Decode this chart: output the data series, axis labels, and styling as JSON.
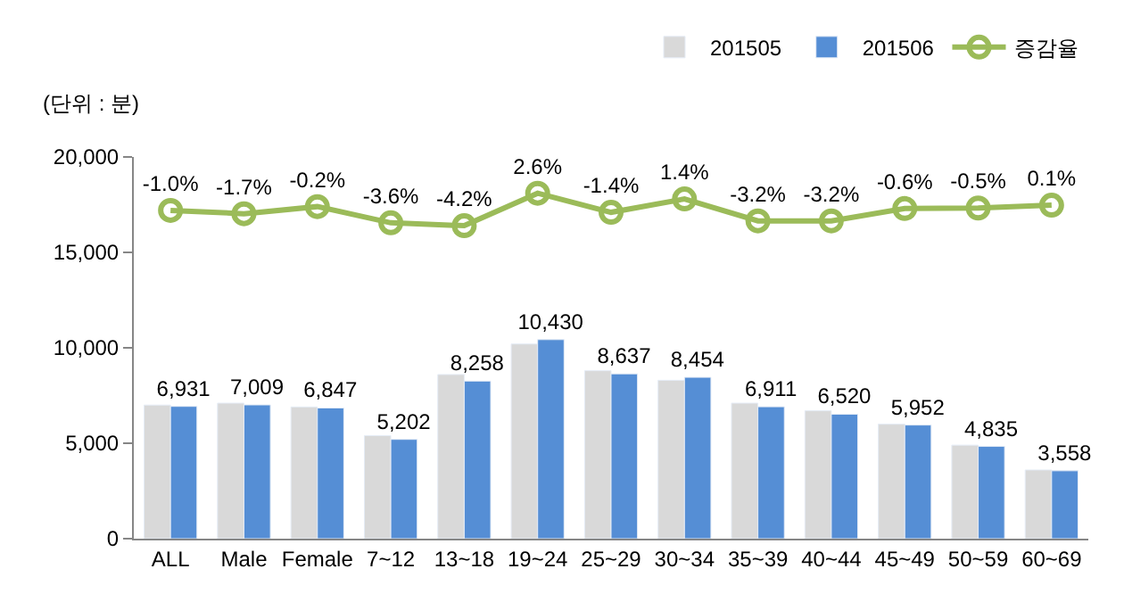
{
  "chart_data": {
    "type": "bar",
    "ylabel": "(단위 : 분)",
    "categories": [
      "ALL",
      "Male",
      "Female",
      "7~12",
      "13~18",
      "19~24",
      "25~29",
      "30~34",
      "35~39",
      "40~44",
      "45~49",
      "50~59",
      "60~69"
    ],
    "series": [
      {
        "name": "201505",
        "color": "#d9d9d9",
        "values": [
          7000,
          7100,
          6900,
          5400,
          8600,
          10200,
          8800,
          8300,
          7100,
          6700,
          6000,
          4900,
          3600
        ]
      },
      {
        "name": "201506",
        "color": "#558ed5",
        "values": [
          6931,
          7009,
          6847,
          5202,
          8258,
          10430,
          8637,
          8454,
          6911,
          6520,
          5952,
          4835,
          3558
        ],
        "value_labels": [
          "6,931",
          "7,009",
          "6,847",
          "5,202",
          "8,258",
          "10,430",
          "8,637",
          "8,454",
          "6,911",
          "6,520",
          "5,952",
          "4,835",
          "3,558"
        ]
      },
      {
        "name": "증감율",
        "type": "line",
        "axis": "y2",
        "color": "#9bbb59",
        "marker": "circle",
        "values": [
          -1.0,
          -1.7,
          -0.2,
          -3.6,
          -4.2,
          2.6,
          -1.4,
          1.4,
          -3.2,
          -3.2,
          -0.6,
          -0.5,
          0.1
        ],
        "value_labels": [
          "-1.0%",
          "-1.7%",
          "-0.2%",
          "-3.6%",
          "-4.2%",
          "2.6%",
          "-1.4%",
          "1.4%",
          "-3.2%",
          "-3.2%",
          "-0.6%",
          "-0.5%",
          "0.1%"
        ]
      }
    ],
    "ylim": [
      0,
      20000
    ],
    "yticks": [
      {
        "value": 0,
        "label": "0"
      },
      {
        "value": 5000,
        "label": "5,000"
      },
      {
        "value": 10000,
        "label": "10,000"
      },
      {
        "value": 15000,
        "label": "15,000"
      },
      {
        "value": 20000,
        "label": "20,000"
      }
    ],
    "legend": "top right"
  }
}
